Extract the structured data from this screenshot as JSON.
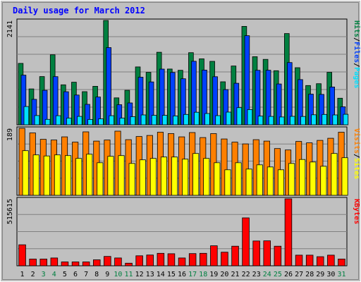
{
  "chart_data": {
    "type": "bar",
    "title": "Daily usage for March 2012",
    "categories": [
      "1",
      "2",
      "3",
      "4",
      "5",
      "6",
      "7",
      "8",
      "9",
      "10",
      "11",
      "12",
      "13",
      "14",
      "15",
      "16",
      "17",
      "18",
      "19",
      "20",
      "21",
      "22",
      "23",
      "24",
      "25",
      "26",
      "27",
      "28",
      "29",
      "30",
      "31"
    ],
    "weekend_days": [
      "3",
      "4",
      "10",
      "11",
      "17",
      "18",
      "24",
      "25",
      "31"
    ],
    "panels": [
      {
        "id": "hits",
        "max_label": "2141",
        "ymax": 2141,
        "series": [
          {
            "name": "Hits",
            "color": "#008040",
            "values": [
              1260,
              736,
              990,
              1436,
              820,
              874,
              680,
              790,
              2141,
              552,
              708,
              1188,
              1077,
              1488,
              1144,
              1118,
              1480,
              1354,
              1302,
              882,
              1207,
              2020,
              1397,
              1343,
              1110,
              1872,
              1172,
              806,
              844,
              1076,
              545
            ]
          },
          {
            "name": "Files",
            "color": "#0040ff",
            "values": [
              1018,
              522,
              708,
              988,
              678,
              610,
              420,
              570,
              1584,
              412,
              448,
              976,
              880,
              1143,
              1074,
              944,
              1303,
              1122,
              986,
              722,
              852,
              1829,
              1118,
              1119,
              837,
              1278,
              928,
              630,
              624,
              776,
              369
            ]
          },
          {
            "name": "Pages",
            "color": "#00e0ff",
            "values": [
              374,
              190,
              112,
              186,
              138,
              172,
              110,
              122,
              186,
              138,
              166,
              202,
              194,
              194,
              182,
              212,
              258,
              232,
              188,
              260,
              352,
              312,
              178,
              172,
              160,
              174,
              170,
              206,
              212,
              202,
              216
            ]
          }
        ]
      },
      {
        "id": "visits",
        "max_label": "189",
        "ymax": 189,
        "series": [
          {
            "name": "Visits",
            "color": "#ff8000",
            "values": [
              189,
              176,
              158,
              156,
              165,
              150,
              179,
              153,
              156,
              181,
              157,
              166,
              169,
              178,
              174,
              165,
              177,
              163,
              174,
              159,
              150,
              145,
              157,
              153,
              132,
              128,
              152,
              148,
              155,
              161,
              178
            ]
          },
          {
            "name": "Sites",
            "color": "#ffff00",
            "values": [
              126,
              114,
              111,
              114,
              112,
              104,
              116,
              92,
              110,
              112,
              90,
              100,
              104,
              108,
              108,
              102,
              118,
              104,
              92,
              72,
              92,
              74,
              86,
              80,
              72,
              90,
              101,
              94,
              82,
              118,
              106
            ]
          }
        ]
      },
      {
        "id": "kbytes",
        "max_label": "515615",
        "ymax": 515615,
        "series": [
          {
            "name": "KBytes",
            "color": "#ff0000",
            "values": [
              162000,
              52000,
              52000,
              60000,
              30000,
              30000,
              30000,
              46000,
              72000,
              60000,
              20000,
              77000,
              83000,
              96000,
              93000,
              60000,
              94000,
              96000,
              154000,
              105000,
              151000,
              369000,
              191000,
              192000,
              151000,
              515615,
              82000,
              82000,
              70000,
              82000,
              52000
            ]
          }
        ]
      }
    ],
    "legend": {
      "placement": "right",
      "side_labels": [
        "Pages",
        "Files",
        "Hits",
        "Sites",
        "Visits",
        "KBytes"
      ]
    },
    "grid": true
  },
  "colors": {
    "frame_bg": "#c0c0c0",
    "plot_bg": "#c0c0c0",
    "title": "#0000ff",
    "weekday_label": "#000000",
    "weekend_label": "#008040",
    "gridline": "#808080",
    "sep": "#ffffff"
  }
}
